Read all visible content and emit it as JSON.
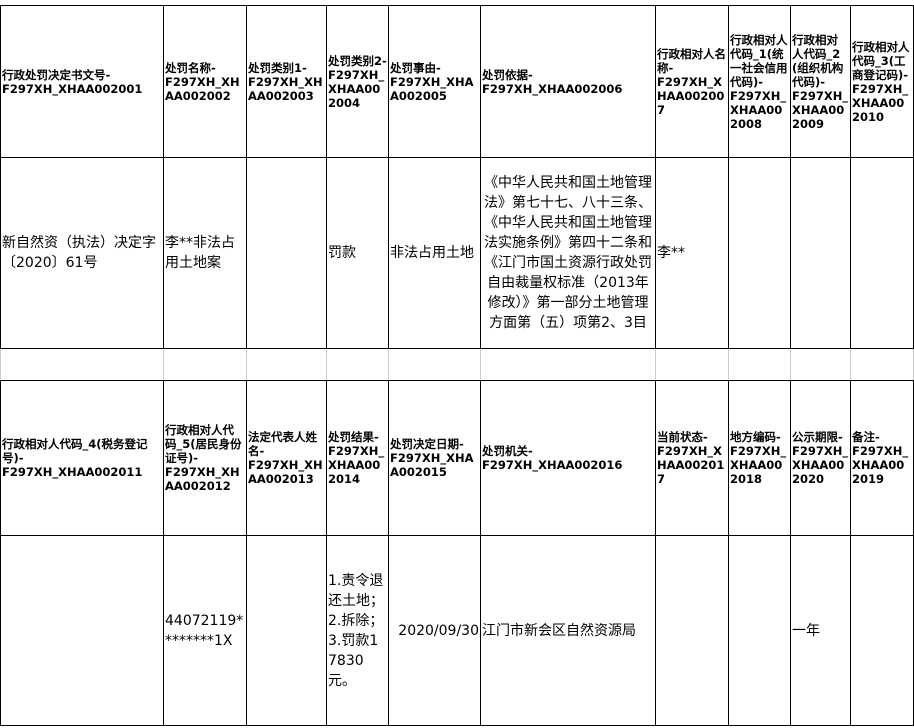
{
  "header_row_1": [
    {
      "label": "行政处罚决定书文号-",
      "code": "F297XH_XHAA002001"
    },
    {
      "label": "处罚名称-",
      "code": "F297XH_XHAA002002"
    },
    {
      "label": "处罚类别1-",
      "code": "F297XH_XHAA002003"
    },
    {
      "label": "处罚类别2-",
      "code": "F297XH_XHAA002004"
    },
    {
      "label": "处罚事由-",
      "code": "F297XH_XHAA002005"
    },
    {
      "label": "处罚依据-",
      "code": "F297XH_XHAA002006"
    },
    {
      "label": "行政相对人名称-",
      "code": "F297XH_XHAA002007"
    },
    {
      "label": "行政相对人代码_1(统一社会信用代码)-",
      "code": "F297XH_XHAA002008"
    },
    {
      "label": "行政相对人代码_2(组织机构代码)-",
      "code": "F297XH_XHAA002009"
    },
    {
      "label": "行政相对人代码_3(工商登记码)-",
      "code": "F297XH_XHAA002010"
    }
  ],
  "data_row_1": [
    "新自然资（执法）决定字〔2020〕61号",
    "李**非法占用土地案",
    "",
    "罚款",
    "非法占用土地",
    "《中华人民共和国土地管理法》第七十七、八十三条、《中华人民共和国土地管理法实施条例》第四十二条和《江门市国土资源行政处罚自由裁量权标准（2013年修改）》第一部分土地管理方面第（五）项第2、3目",
    "李**",
    "",
    "",
    ""
  ],
  "header_row_2": [
    {
      "label": "行政相对人代码_4(税务登记号)-",
      "code": "F297XH_XHAA002011"
    },
    {
      "label": "行政相对人代码_5(居民身份证号)-",
      "code": "F297XH_XHAA002012"
    },
    {
      "label": "法定代表人姓名-",
      "code": "F297XH_XHAA002013"
    },
    {
      "label": "处罚结果-",
      "code": "F297XH_XHAA002014"
    },
    {
      "label": "处罚决定日期-",
      "code": "F297XH_XHAA002015"
    },
    {
      "label": "处罚机关-",
      "code": "F297XH_XHAA002016"
    },
    {
      "label": "当前状态-",
      "code": "F297XH_XHAA002017"
    },
    {
      "label": "地方编码-",
      "code": "F297XH_XHAA002018"
    },
    {
      "label": "公示期限-",
      "code": "F297XH_XHAA002020"
    },
    {
      "label": "备注-",
      "code": "F297XH_XHAA002019"
    }
  ],
  "data_row_2": [
    "",
    "44072119********1X",
    "",
    "1.责令退还土地；2.拆除；3.罚款17830元。",
    "2020/09/30",
    "江门市新会区自然资源局",
    "",
    "",
    "一年",
    ""
  ]
}
